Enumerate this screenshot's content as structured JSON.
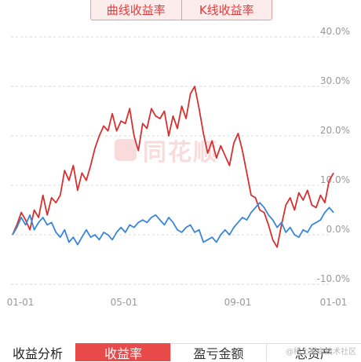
{
  "toggle": {
    "options": [
      "曲线收益率",
      "K线收益率"
    ],
    "active_index": 0
  },
  "chart_data": {
    "type": "line",
    "y_ticks": [
      "40.0%",
      "30.0%",
      "20.0%",
      "10.0%",
      "0.0%",
      "-10.0%"
    ],
    "x_ticks": [
      "01-01",
      "05-01",
      "09-01",
      "01-01"
    ],
    "ylim": [
      -10,
      40
    ],
    "grid": true,
    "series": [
      {
        "color": "#d63031",
        "values": [
          0.0,
          2.0,
          4.5,
          3.0,
          1.0,
          5.0,
          3.5,
          8.0,
          4.0,
          7.5,
          6.5,
          8.0,
          13.0,
          11.0,
          14.0,
          9.0,
          12.5,
          11.0,
          14.0,
          17.5,
          20.0,
          22.0,
          21.0,
          24.5,
          21.0,
          23.0,
          22.5,
          25.5,
          20.0,
          17.0,
          22.5,
          21.5,
          25.5,
          24.0,
          23.5,
          25.0,
          20.0,
          24.0,
          21.5,
          26.0,
          23.5,
          28.5,
          30.0,
          25.5,
          20.5,
          16.5,
          19.0,
          15.5,
          18.0,
          16.0,
          14.0,
          18.5,
          20.5,
          17.0,
          12.5,
          8.0,
          7.5,
          5.0,
          4.5,
          2.0,
          -1.0,
          -2.5,
          2.0,
          6.0,
          7.5,
          5.0,
          8.5,
          7.0,
          9.0,
          6.0,
          5.5,
          8.0,
          6.5,
          11.0,
          12.5
        ]
      },
      {
        "color": "#3a86d4",
        "values": [
          0.0,
          1.5,
          3.5,
          2.0,
          4.0,
          1.0,
          2.5,
          3.5,
          2.0,
          2.5,
          0.5,
          -0.5,
          1.0,
          -1.5,
          -0.5,
          -2.0,
          -0.5,
          1.0,
          -0.5,
          0.0,
          -1.0,
          0.5,
          0.0,
          -1.0,
          0.5,
          1.5,
          0.5,
          2.0,
          1.5,
          2.5,
          3.0,
          2.5,
          3.5,
          4.0,
          3.0,
          2.0,
          3.5,
          2.5,
          1.0,
          0.5,
          1.5,
          2.0,
          0.5,
          1.0,
          -1.5,
          -1.0,
          -0.5,
          -1.5,
          0.0,
          1.0,
          0.0,
          1.5,
          2.5,
          3.5,
          3.0,
          4.5,
          5.5,
          6.5,
          5.5,
          4.0,
          3.0,
          1.5,
          2.5,
          0.5,
          1.5,
          0.0,
          -0.5,
          1.0,
          0.5,
          2.0,
          2.5,
          3.0,
          4.5,
          5.5,
          4.5
        ]
      }
    ]
  },
  "watermark_text": "同花顺",
  "bottom": {
    "title": "收益分析",
    "tabs": [
      "收益率",
      "盈亏金额",
      "总资产"
    ],
    "active_index": 0
  },
  "corner_watermark": "@稀土掘金技术社区"
}
